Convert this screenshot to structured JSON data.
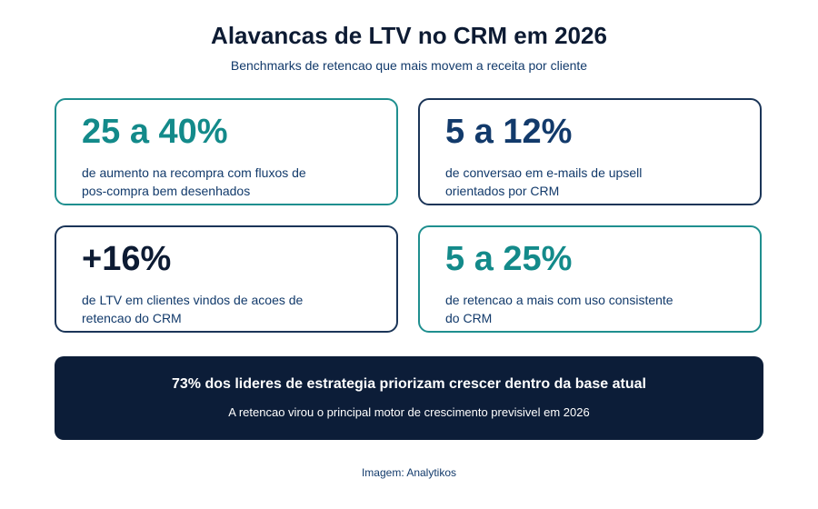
{
  "header": {
    "title": "Alavancas de LTV no CRM em 2026",
    "subtitle": "Benchmarks de retencao que mais movem a receita por cliente"
  },
  "cards": [
    {
      "stat": "25 a 40%",
      "text": "de aumento na recompra com fluxos de pos-compra bem desenhados",
      "color": "#138a8a",
      "border": "#1f8f8f"
    },
    {
      "stat": "5 a 12%",
      "text": "de conversao em e-mails de upsell orientados por CRM",
      "color": "#123a6b",
      "border": "#1b3558"
    },
    {
      "stat": "+16%",
      "text": "de LTV em clientes vindos de acoes de retencao do CRM",
      "color": "#0d1b33",
      "border": "#1b3558"
    },
    {
      "stat": "5 a 25%",
      "text": "de retencao a mais com uso consistente do CRM",
      "color": "#138a8a",
      "border": "#1f8f8f"
    }
  ],
  "banner": {
    "headline": "73% dos lideres de estrategia priorizam crescer dentro da base atual",
    "text": "A retencao virou o principal motor de crescimento previsivel em 2026"
  },
  "footer": {
    "credit": "Imagem: Analytikos"
  }
}
